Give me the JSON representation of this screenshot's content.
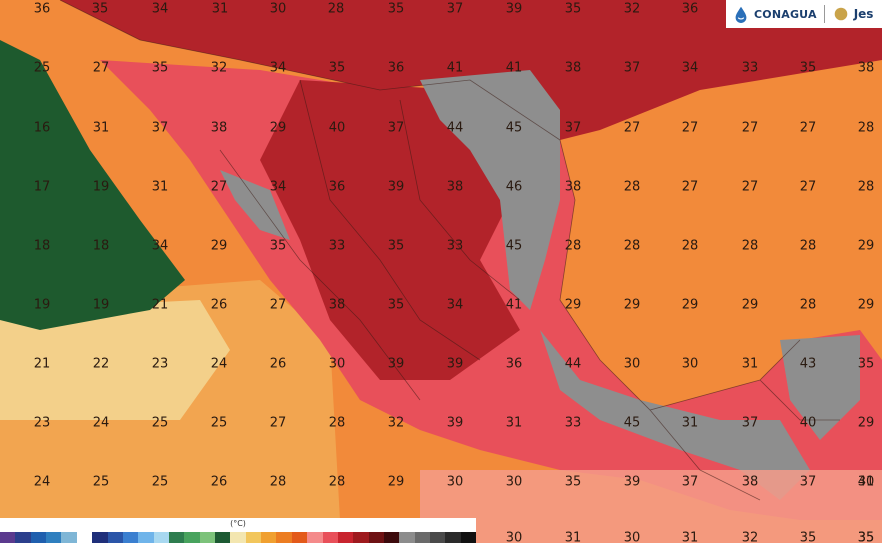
{
  "logo": {
    "agency": "CONAGUA",
    "partner": "Jes"
  },
  "legend": {
    "unit": "(°C)",
    "colors": [
      "#5b3a8e",
      "#2b3f8c",
      "#1f5fae",
      "#2f7fbf",
      "#7fb6d6",
      "#ffffff",
      "#1f2f7a",
      "#2a55a8",
      "#3a7fd0",
      "#6fb4ea",
      "#a8d8f0",
      "#2e7d4f",
      "#48a35e",
      "#7cc27a",
      "#1d5a33",
      "#f3e6b0",
      "#f2c65c",
      "#f0a030",
      "#ec7d22",
      "#e35a1a",
      "#f48a8a",
      "#e8505a",
      "#c8242e",
      "#9e1a1e",
      "#6e1214",
      "#3c0a0c",
      "#8c8c8c",
      "#6a6a6a",
      "#4a4a4a",
      "#2a2a2a",
      "#111111"
    ]
  },
  "regions": {
    "pacific_cool": "#1e5a2e",
    "pacific_mid": "#f3d08a",
    "pacific_warm": "#f2b664",
    "gulf": "#f28a3a",
    "hot_land": "#e85a5a",
    "very_hot": "#b2232a",
    "extreme": "#8e8e8e",
    "pink_coast": "#f49b8a"
  },
  "temperatures": [
    "36",
    "35",
    "34",
    "31",
    "30",
    "28",
    "35",
    "37",
    "39",
    "35",
    "32",
    "36",
    "25",
    "27",
    "35",
    "32",
    "34",
    "35",
    "36",
    "41",
    "41",
    "38",
    "37",
    "34",
    "33",
    "35",
    "38",
    "16",
    "31",
    "37",
    "38",
    "29",
    "40",
    "37",
    "44",
    "45",
    "37",
    "27",
    "27",
    "27",
    "27",
    "28",
    "17",
    "19",
    "31",
    "27",
    "34",
    "36",
    "39",
    "38",
    "46",
    "38",
    "28",
    "27",
    "27",
    "27",
    "28",
    "18",
    "18",
    "34",
    "29",
    "35",
    "33",
    "35",
    "33",
    "45",
    "28",
    "28",
    "28",
    "28",
    "28",
    "29",
    "19",
    "19",
    "21",
    "26",
    "27",
    "38",
    "35",
    "34",
    "41",
    "29",
    "29",
    "29",
    "29",
    "28",
    "29",
    "21",
    "22",
    "23",
    "24",
    "26",
    "30",
    "39",
    "39",
    "36",
    "44",
    "30",
    "30",
    "31",
    "43",
    "35",
    "23",
    "24",
    "25",
    "25",
    "27",
    "28",
    "32",
    "39",
    "31",
    "33",
    "45",
    "31",
    "37",
    "40",
    "29",
    "24",
    "25",
    "25",
    "26",
    "28",
    "28",
    "29",
    "30",
    "30",
    "35",
    "39",
    "37",
    "38",
    "37",
    "41",
    "30",
    "30",
    "31",
    "30",
    "31",
    "32",
    "35",
    "35",
    "35"
  ]
}
